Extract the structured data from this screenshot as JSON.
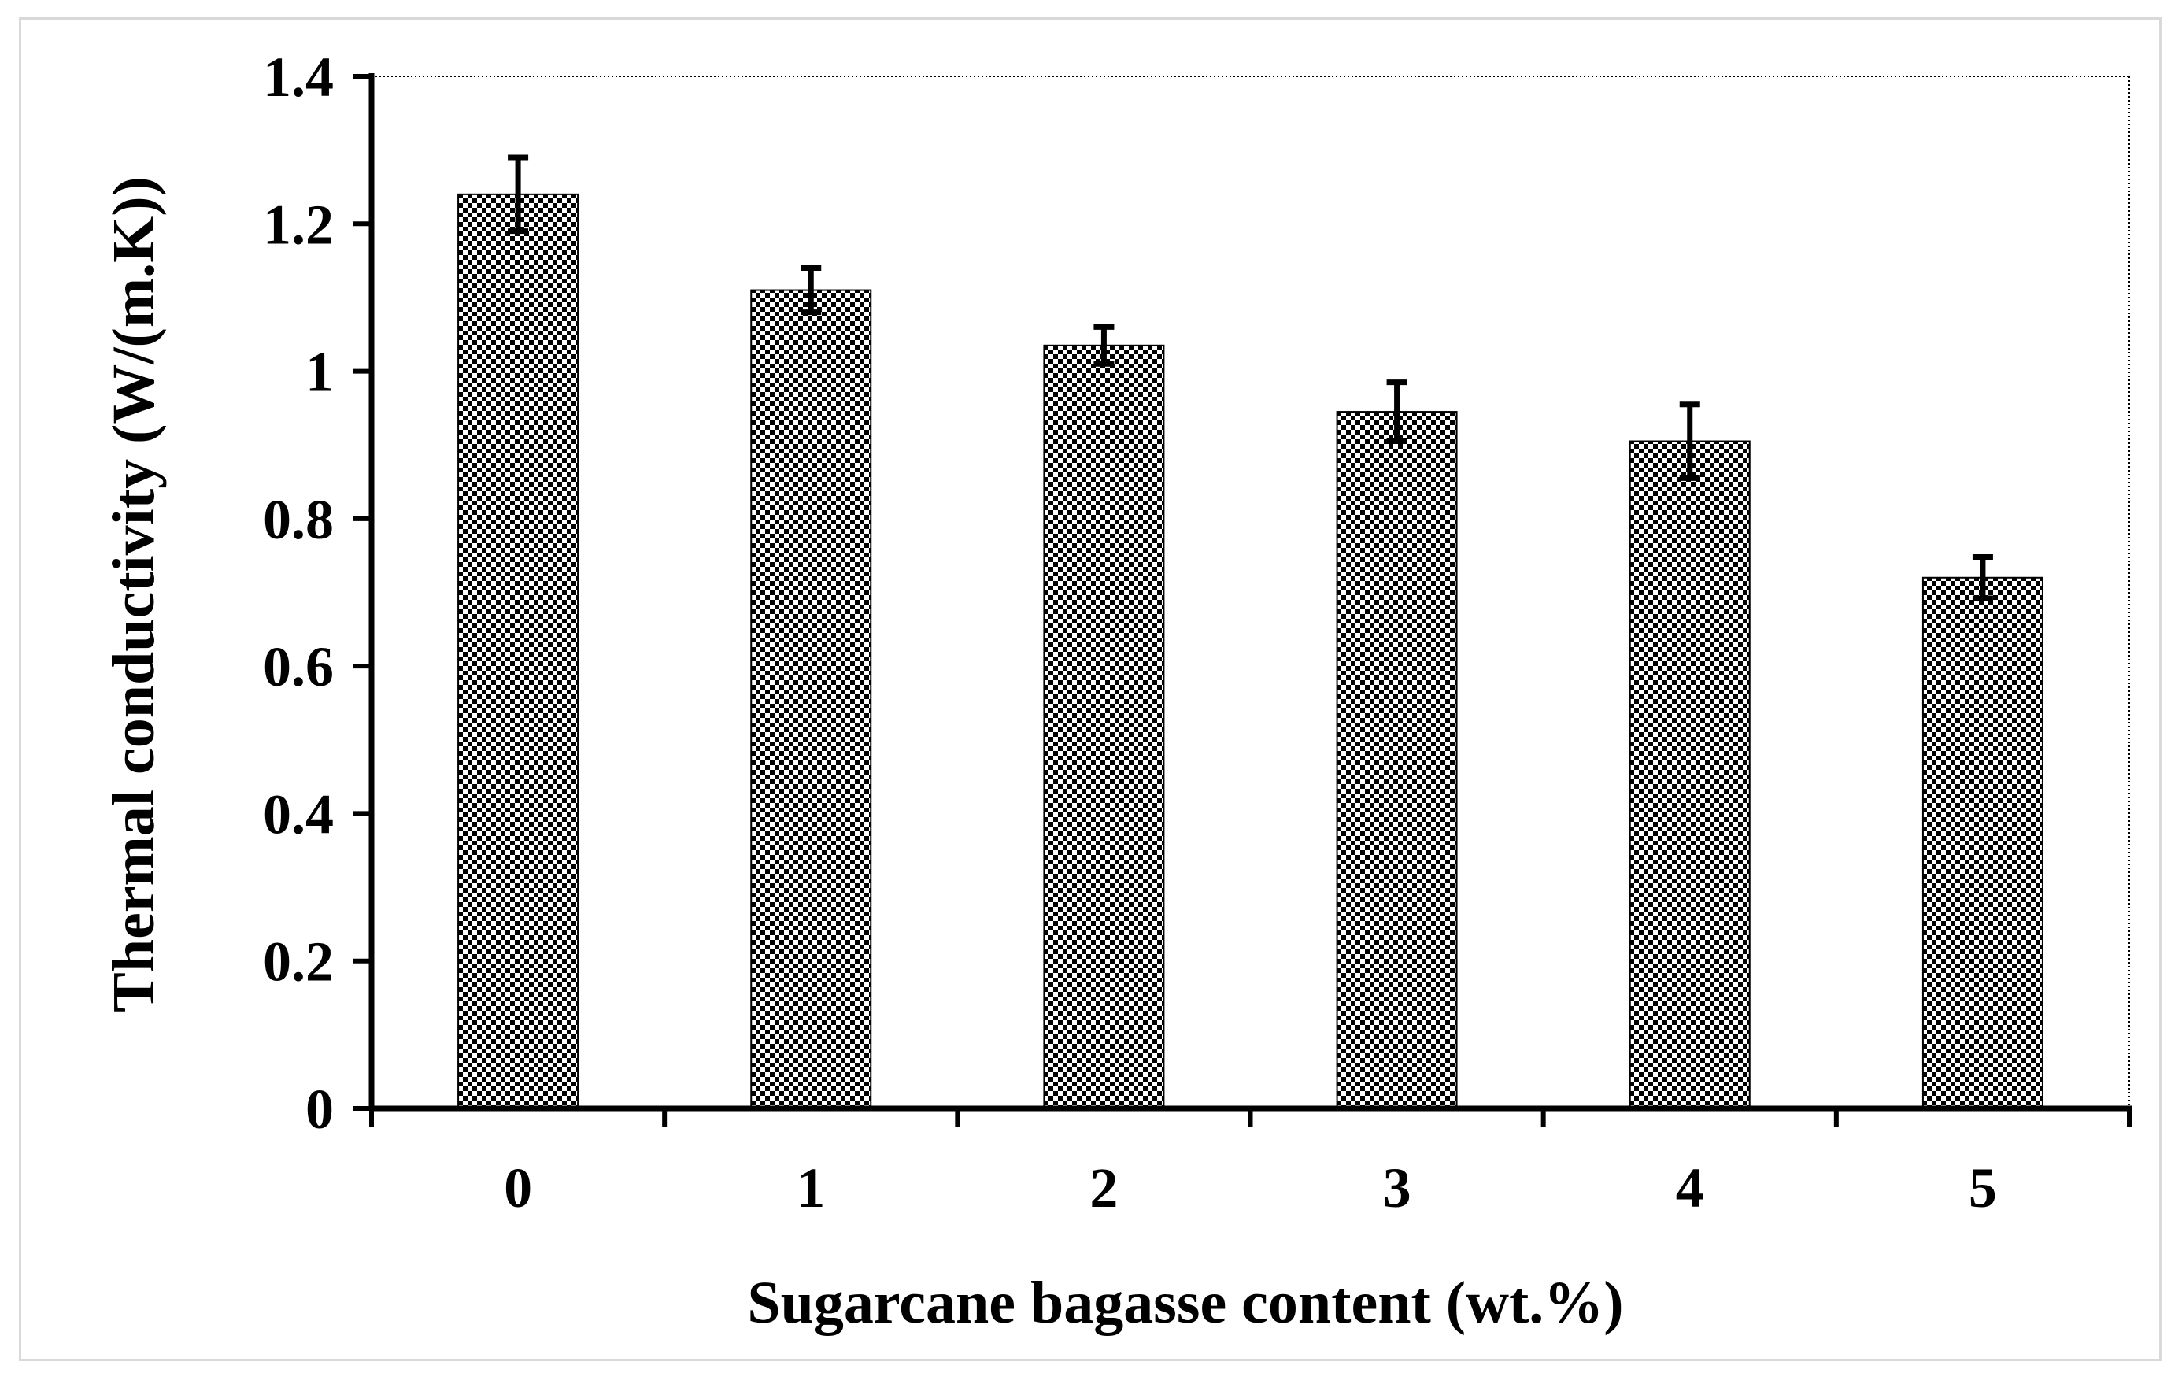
{
  "chart_data": {
    "type": "bar",
    "title": "",
    "xlabel": "Sugarcane bagasse content (wt.%)",
    "ylabel": "Thermal conductivity (W/(m.K))",
    "categories": [
      "0",
      "1",
      "2",
      "3",
      "4",
      "5"
    ],
    "values": [
      1.24,
      1.11,
      1.035,
      0.945,
      0.905,
      0.72
    ],
    "error": [
      0.05,
      0.03,
      0.025,
      0.04,
      0.05,
      0.028
    ],
    "ylim": [
      0,
      1.4
    ],
    "yticks": [
      "0",
      "0.2",
      "0.4",
      "0.6",
      "0.8",
      "1",
      "1.2",
      "1.4"
    ],
    "yticks_values": [
      0,
      0.2,
      0.4,
      0.6,
      0.8,
      1.0,
      1.2,
      1.4
    ],
    "grid": false,
    "legend": "none",
    "bar_pattern": "checkered",
    "colors": {
      "bar_dark": "#000000",
      "bar_light": "#ffffff",
      "axis": "#000000",
      "frame": "#d9d9d9"
    }
  }
}
